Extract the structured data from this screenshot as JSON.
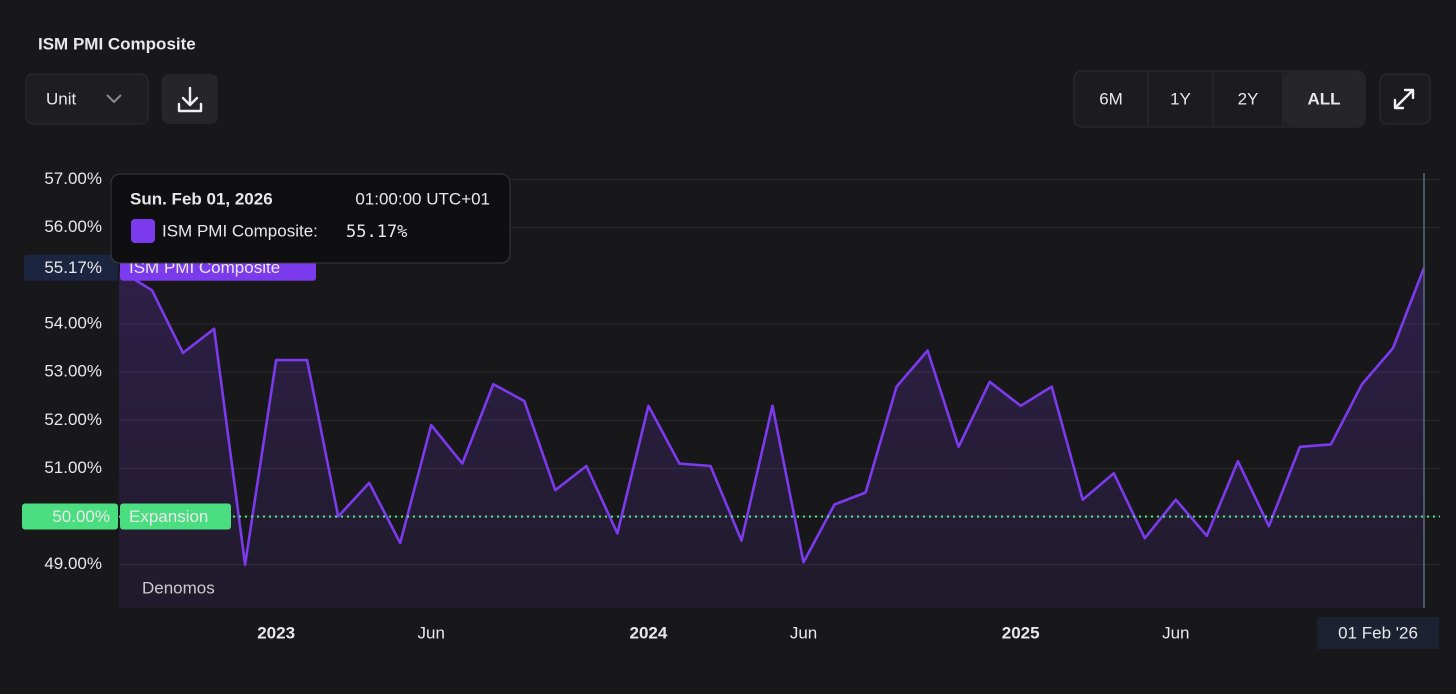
{
  "chart_data": {
    "type": "line",
    "title": "ISM PMI Composite",
    "x": [
      "2022-08",
      "2022-09",
      "2022-10",
      "2022-11",
      "2022-12",
      "2023-01",
      "2023-02",
      "2023-03",
      "2023-04",
      "2023-05",
      "2023-06",
      "2023-07",
      "2023-08",
      "2023-09",
      "2023-10",
      "2023-11",
      "2023-12",
      "2024-01",
      "2024-02",
      "2024-03",
      "2024-04",
      "2024-05",
      "2024-06",
      "2024-07",
      "2024-08",
      "2024-09",
      "2024-10",
      "2024-11",
      "2024-12",
      "2025-01",
      "2025-02",
      "2025-03",
      "2025-04",
      "2025-05",
      "2025-06",
      "2025-07",
      "2025-08",
      "2025-09",
      "2025-10",
      "2025-11",
      "2025-12",
      "2026-01",
      "2026-02"
    ],
    "series": [
      {
        "name": "ISM PMI Composite",
        "color": "#7c3aed",
        "values": [
          55.1,
          54.7,
          53.4,
          53.9,
          49.0,
          53.25,
          53.25,
          50.0,
          50.7,
          49.45,
          51.9,
          51.1,
          52.75,
          52.4,
          50.55,
          51.05,
          49.65,
          52.3,
          51.1,
          51.05,
          49.5,
          52.3,
          49.05,
          50.25,
          50.5,
          52.7,
          53.45,
          51.45,
          52.8,
          52.3,
          52.7,
          50.35,
          50.9,
          49.55,
          50.35,
          49.6,
          51.15,
          49.8,
          51.45,
          51.5,
          52.75,
          53.5,
          55.17
        ],
        "value_labels": [
          null,
          null,
          null,
          null,
          null,
          null,
          null,
          null,
          null,
          null,
          null,
          null,
          null,
          null,
          null,
          null,
          null,
          null,
          null,
          null,
          null,
          null,
          null,
          null,
          null,
          null,
          null,
          null,
          null,
          null,
          null,
          null,
          null,
          null,
          null,
          null,
          null,
          null,
          null,
          null,
          null,
          null,
          "55.17%"
        ]
      }
    ],
    "xlim": [
      "2022-08",
      "2026-02"
    ],
    "xticks": [
      {
        "value": "2023-01",
        "label": "2023"
      },
      {
        "value": "2023-06",
        "label": "Jun"
      },
      {
        "value": "2024-01",
        "label": "2024"
      },
      {
        "value": "2024-06",
        "label": "Jun"
      },
      {
        "value": "2025-01",
        "label": "2025"
      },
      {
        "value": "2025-06",
        "label": "Jun"
      }
    ],
    "ylim": [
      48.1,
      57.2
    ],
    "yticks": [
      {
        "value": 49,
        "label": "49.00%"
      },
      {
        "value": 50,
        "label": "50.00%"
      },
      {
        "value": 51,
        "label": "51.00%"
      },
      {
        "value": 52,
        "label": "52.00%"
      },
      {
        "value": 53,
        "label": "53.00%"
      },
      {
        "value": 54,
        "label": "54.00%"
      },
      {
        "value": 56,
        "label": "56.00%"
      },
      {
        "value": 57,
        "label": "57.00%"
      }
    ],
    "grid": true,
    "reference_line": {
      "value": 50,
      "label": "50.00%",
      "name": "Expansion",
      "color": "#4ade80"
    },
    "crosshair": {
      "x": "2026-02",
      "label": "01 Feb '26"
    },
    "tooltip": {
      "date": "Sun. Feb 01, 2026",
      "time": "01:00:00 UTC+01",
      "series_label": "ISM PMI Composite:"
    },
    "watermark": "Denomos"
  },
  "ui": {
    "unit": "Unit",
    "ranges": [
      "6M",
      "1Y",
      "2Y",
      "ALL"
    ],
    "selected_range": "ALL"
  }
}
